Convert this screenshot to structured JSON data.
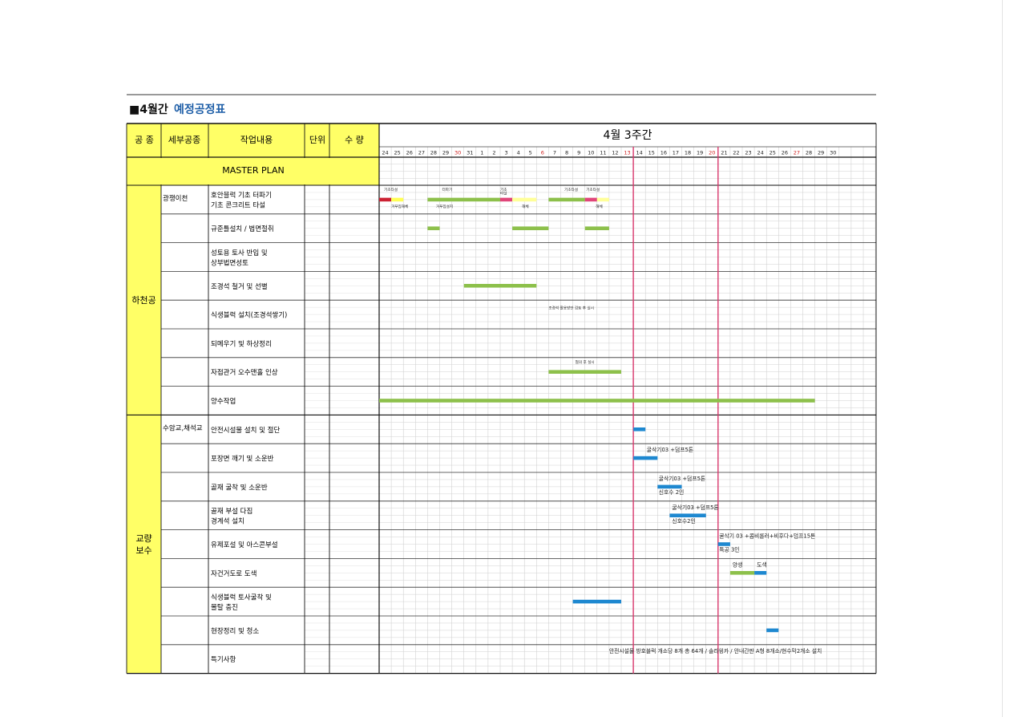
{
  "document": {
    "title_prefix": "■4월간",
    "title_main": "예정공정표",
    "title_color": "#1f5fa8"
  },
  "table": {
    "headers": {
      "category": "공 종",
      "sub_category": "세부공종",
      "task": "작업내용",
      "unit": "단위",
      "quantity": "수 량"
    },
    "gantt_title": "4월 3주간",
    "master_plan": "MASTER PLAN",
    "days": [
      {
        "label": "24",
        "holiday": false
      },
      {
        "label": "25",
        "holiday": false
      },
      {
        "label": "26",
        "holiday": false
      },
      {
        "label": "27",
        "holiday": false
      },
      {
        "label": "28",
        "holiday": false
      },
      {
        "label": "29",
        "holiday": false
      },
      {
        "label": "30",
        "holiday": true
      },
      {
        "label": "31",
        "holiday": false
      },
      {
        "label": "1",
        "holiday": false
      },
      {
        "label": "2",
        "holiday": false
      },
      {
        "label": "3",
        "holiday": false
      },
      {
        "label": "4",
        "holiday": false
      },
      {
        "label": "5",
        "holiday": false
      },
      {
        "label": "6",
        "holiday": true
      },
      {
        "label": "7",
        "holiday": false
      },
      {
        "label": "8",
        "holiday": false
      },
      {
        "label": "9",
        "holiday": false
      },
      {
        "label": "10",
        "holiday": false
      },
      {
        "label": "11",
        "holiday": false
      },
      {
        "label": "12",
        "holiday": false
      },
      {
        "label": "13",
        "holiday": true
      },
      {
        "label": "14",
        "holiday": false
      },
      {
        "label": "15",
        "holiday": false
      },
      {
        "label": "16",
        "holiday": false
      },
      {
        "label": "17",
        "holiday": false
      },
      {
        "label": "18",
        "holiday": false
      },
      {
        "label": "19",
        "holiday": false
      },
      {
        "label": "20",
        "holiday": true
      },
      {
        "label": "21",
        "holiday": false
      },
      {
        "label": "22",
        "holiday": false
      },
      {
        "label": "23",
        "holiday": false
      },
      {
        "label": "24",
        "holiday": false
      },
      {
        "label": "25",
        "holiday": false
      },
      {
        "label": "26",
        "holiday": false
      },
      {
        "label": "27",
        "holiday": true
      },
      {
        "label": "28",
        "holiday": false
      },
      {
        "label": "29",
        "holiday": false
      },
      {
        "label": "30",
        "holiday": false
      },
      {
        "label": "",
        "holiday": false
      },
      {
        "label": "",
        "holiday": false
      },
      {
        "label": "",
        "holiday": false
      }
    ],
    "current_week": {
      "start_day_index": 21,
      "end_day_index": 27,
      "line_color": "#d9366b"
    },
    "colors": {
      "header_fill": "#ffff66",
      "green": "#8dc04b",
      "blue": "#1e88d0",
      "red": "#cc2233",
      "yellow": "#ffff55",
      "pink": "#e0457a",
      "light_yellow": "#ffff99"
    },
    "groups": [
      {
        "label_lines": [
          "하천공"
        ],
        "row_count": 8
      },
      {
        "label_lines": [
          "교량",
          "보수"
        ],
        "row_count": 9
      }
    ],
    "rows": [
      {
        "sub": "광쟁이천",
        "task_lines": [
          "호안블럭 기초 터파기",
          "기초 콘크리트 타설"
        ],
        "bars": [
          {
            "start": 0,
            "end": 1,
            "color": "red"
          },
          {
            "start": 1,
            "end": 2,
            "color": "yellow"
          },
          {
            "start": 4,
            "end": 10,
            "color": "green"
          },
          {
            "start": 10,
            "end": 11,
            "color": "pink"
          },
          {
            "start": 11,
            "end": 13,
            "color": "light_yellow"
          },
          {
            "start": 14,
            "end": 17,
            "color": "green"
          },
          {
            "start": 17,
            "end": 18,
            "color": "pink"
          },
          {
            "start": 18,
            "end": 19,
            "color": "light_yellow"
          }
        ],
        "notes": [
          {
            "text": "기초타설",
            "day": 0.4,
            "line": "top"
          },
          {
            "text": "거푸집해체",
            "day": 1,
            "line": "bottom"
          },
          {
            "text": "터파기",
            "day": 5.2,
            "line": "top"
          },
          {
            "text": "거푸집설치",
            "day": 4.7,
            "line": "bottom"
          },
          {
            "text": "기초",
            "day": 10,
            "line": "top"
          },
          {
            "text": "타설",
            "day": 10,
            "line": "mid"
          },
          {
            "text": "해체",
            "day": 11.8,
            "line": "bottom"
          },
          {
            "text": "기초타설",
            "day": 15.3,
            "line": "top"
          },
          {
            "text": "기초타설",
            "day": 17.1,
            "line": "top"
          },
          {
            "text": "해체",
            "day": 17.9,
            "line": "bottom"
          }
        ]
      },
      {
        "sub": "",
        "task_lines": [
          "규준틀설치 / 법면절취"
        ],
        "bars": [
          {
            "start": 4,
            "end": 5,
            "color": "green"
          },
          {
            "start": 11,
            "end": 14,
            "color": "green"
          },
          {
            "start": 17,
            "end": 19,
            "color": "green"
          }
        ],
        "notes": []
      },
      {
        "sub": "",
        "task_lines": [
          "성토용 토사 반입 및",
          "상부법면성토"
        ],
        "bars": [],
        "notes": []
      },
      {
        "sub": "",
        "task_lines": [
          "조경석 철거 및 선별"
        ],
        "bars": [
          {
            "start": 7,
            "end": 13,
            "color": "green"
          }
        ],
        "notes": []
      },
      {
        "sub": "",
        "task_lines": [
          "식생블럭 설치(조경석쌓기)"
        ],
        "bars": [],
        "notes": [
          {
            "text": "조경석 활용방안 검토 후 실시",
            "day": 14,
            "line": "mid"
          }
        ]
      },
      {
        "sub": "",
        "task_lines": [
          "되메우기 및 하상정리"
        ],
        "bars": [],
        "notes": []
      },
      {
        "sub": "",
        "task_lines": [
          "자접관거 오수맨홀 인상"
        ],
        "bars": [
          {
            "start": 14,
            "end": 20,
            "color": "green"
          }
        ],
        "notes": [
          {
            "text": "협의 후 실시",
            "day": 16.2,
            "line": "top"
          }
        ]
      },
      {
        "sub": "",
        "task_lines": [
          "양수작업"
        ],
        "bars": [
          {
            "start": 0,
            "end": 36,
            "color": "green"
          }
        ],
        "notes": []
      },
      {
        "sub": "수암교,채석교",
        "task_lines": [
          "안전시설물 설치 및 절단"
        ],
        "bars": [
          {
            "start": 21,
            "end": 22,
            "color": "blue"
          }
        ],
        "notes": []
      },
      {
        "sub": "",
        "task_lines": [
          "포장면 깨기 및 소운반"
        ],
        "bars": [
          {
            "start": 21,
            "end": 23,
            "color": "blue"
          }
        ],
        "notes": [
          {
            "text": "굴삭기03 +덤프5톤",
            "day": 22.1,
            "line": "top",
            "size": "large"
          }
        ]
      },
      {
        "sub": "",
        "task_lines": [
          "골재 굴착 및 소운반"
        ],
        "bars": [
          {
            "start": 23,
            "end": 25,
            "color": "blue"
          }
        ],
        "notes": [
          {
            "text": "굴삭기03 +덤프5톤",
            "day": 23.1,
            "line": "top",
            "size": "large"
          },
          {
            "text": "신호수 2인",
            "day": 23.1,
            "line": "bottom",
            "size": "large"
          }
        ]
      },
      {
        "sub": "",
        "task_lines": [
          "골재 부설 다짐",
          "경계석 설치"
        ],
        "bars": [
          {
            "start": 24,
            "end": 27,
            "color": "blue"
          }
        ],
        "notes": [
          {
            "text": "굴삭기03 +덤프5톤",
            "day": 24.2,
            "line": "top",
            "size": "large"
          },
          {
            "text": "신호수2인",
            "day": 24.2,
            "line": "bottom",
            "size": "large"
          }
        ]
      },
      {
        "sub": "",
        "task_lines": [
          "유제포설 및 아스콘부설"
        ],
        "bars": [
          {
            "start": 28,
            "end": 29,
            "color": "blue"
          }
        ],
        "notes": [
          {
            "text": "굴삭기 03 +콤비롤러+비후다+덤프15톤",
            "day": 28.1,
            "line": "top",
            "size": "large"
          },
          {
            "text": "특공 3인",
            "day": 28.1,
            "line": "bottom",
            "size": "large"
          }
        ]
      },
      {
        "sub": "",
        "task_lines": [
          "자건거도로 도색"
        ],
        "bars": [
          {
            "start": 29,
            "end": 31,
            "color": "green"
          },
          {
            "start": 31,
            "end": 32,
            "color": "blue"
          }
        ],
        "notes": [
          {
            "text": "양생",
            "day": 29.2,
            "line": "top",
            "size": "large"
          },
          {
            "text": "도색",
            "day": 31.2,
            "line": "top",
            "size": "large"
          }
        ]
      },
      {
        "sub": "",
        "task_lines": [
          "식생블럭 토사굴착 및",
          "몰탈 충진"
        ],
        "bars": [
          {
            "start": 16,
            "end": 20,
            "color": "blue"
          }
        ],
        "notes": []
      },
      {
        "sub": "",
        "task_lines": [
          "현장정리 및 청소"
        ],
        "bars": [
          {
            "start": 32,
            "end": 33,
            "color": "blue"
          }
        ],
        "notes": []
      },
      {
        "sub": "",
        "task_lines": [
          "특기사항"
        ],
        "bars": [],
        "notes": [
          {
            "text": "안전시설물 방호블럭 개소당 8개 총 64개 / 솔라윙카  / 안내간판 A형 8개소/현수막2개소 설치",
            "day": 19,
            "line": "top",
            "size": "large"
          }
        ]
      }
    ]
  }
}
